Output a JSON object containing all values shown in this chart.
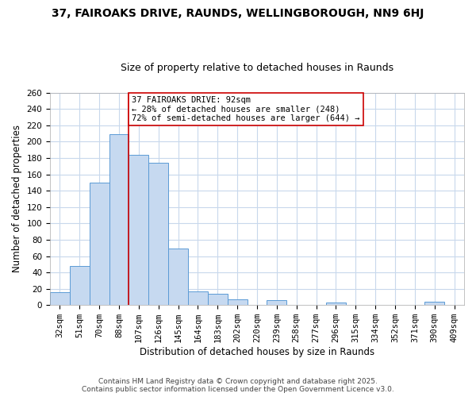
{
  "title": "37, FAIROAKS DRIVE, RAUNDS, WELLINGBOROUGH, NN9 6HJ",
  "subtitle": "Size of property relative to detached houses in Raunds",
  "xlabel": "Distribution of detached houses by size in Raunds",
  "ylabel": "Number of detached properties",
  "categories": [
    "32sqm",
    "51sqm",
    "70sqm",
    "88sqm",
    "107sqm",
    "126sqm",
    "145sqm",
    "164sqm",
    "183sqm",
    "202sqm",
    "220sqm",
    "239sqm",
    "258sqm",
    "277sqm",
    "296sqm",
    "315sqm",
    "334sqm",
    "352sqm",
    "371sqm",
    "390sqm",
    "409sqm"
  ],
  "values": [
    16,
    48,
    150,
    209,
    184,
    174,
    69,
    17,
    14,
    7,
    0,
    6,
    0,
    0,
    3,
    0,
    0,
    0,
    0,
    4,
    0
  ],
  "bar_color": "#c6d9f0",
  "bar_edge_color": "#5b9bd5",
  "vline_x_index": 3,
  "vline_color": "#cc0000",
  "annotation_text": "37 FAIROAKS DRIVE: 92sqm\n← 28% of detached houses are smaller (248)\n72% of semi-detached houses are larger (644) →",
  "annotation_box_color": "#ffffff",
  "annotation_box_edge": "#cc0000",
  "ylim": [
    0,
    260
  ],
  "yticks": [
    0,
    20,
    40,
    60,
    80,
    100,
    120,
    140,
    160,
    180,
    200,
    220,
    240,
    260
  ],
  "footer_line1": "Contains HM Land Registry data © Crown copyright and database right 2025.",
  "footer_line2": "Contains public sector information licensed under the Open Government Licence v3.0.",
  "background_color": "#ffffff",
  "grid_color": "#c8d8ec",
  "title_fontsize": 10,
  "subtitle_fontsize": 9,
  "axis_label_fontsize": 8.5,
  "tick_fontsize": 7.5,
  "annotation_fontsize": 7.5,
  "footer_fontsize": 6.5
}
